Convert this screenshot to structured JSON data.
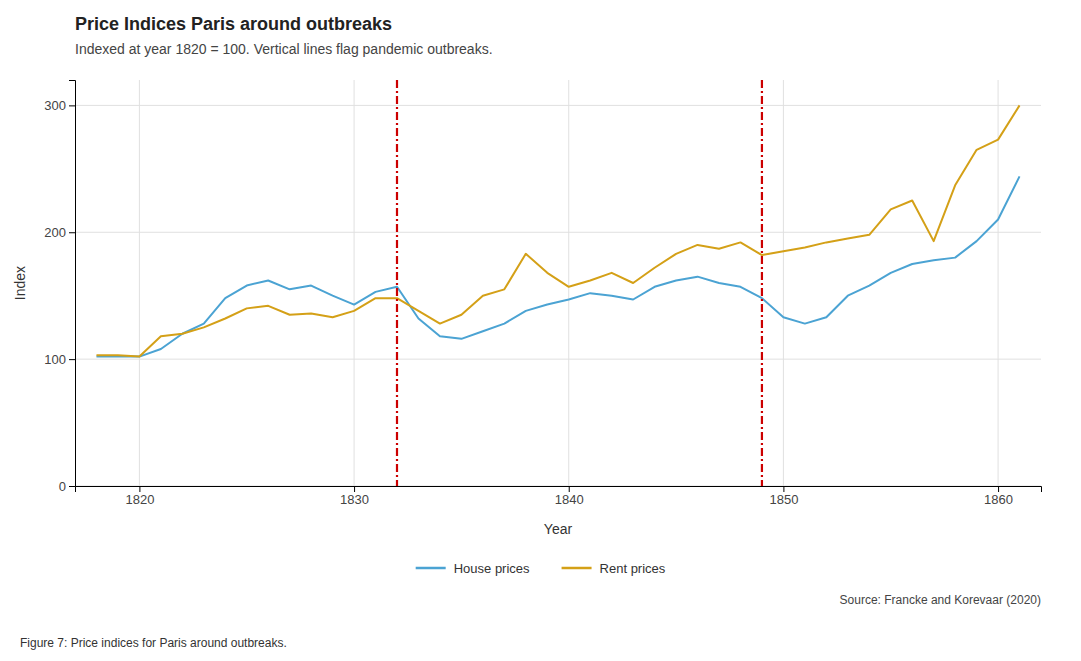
{
  "chart_data": {
    "type": "line",
    "title": "Price Indices Paris around outbreaks",
    "subtitle": "Indexed at year 1820 = 100. Vertical lines flag pandemic outbreaks.",
    "xlabel": "Year",
    "ylabel": "Index",
    "source": "Source: Francke and Korevaar (2020)",
    "caption": "Figure 7: Price indices for Paris around outbreaks.",
    "x": [
      1818,
      1819,
      1820,
      1821,
      1822,
      1823,
      1824,
      1825,
      1826,
      1827,
      1828,
      1829,
      1830,
      1831,
      1832,
      1833,
      1834,
      1835,
      1836,
      1837,
      1838,
      1839,
      1840,
      1841,
      1842,
      1843,
      1844,
      1845,
      1846,
      1847,
      1848,
      1849,
      1850,
      1851,
      1852,
      1853,
      1854,
      1855,
      1856,
      1857,
      1858,
      1859,
      1860,
      1861
    ],
    "series": [
      {
        "name": "House prices",
        "color": "#4ba3d3",
        "values": [
          102,
          102,
          102,
          108,
          120,
          128,
          148,
          158,
          162,
          155,
          158,
          150,
          143,
          153,
          157,
          132,
          118,
          116,
          122,
          128,
          138,
          143,
          147,
          152,
          150,
          147,
          157,
          162,
          165,
          160,
          157,
          148,
          133,
          128,
          133,
          150,
          158,
          168,
          175,
          178,
          180,
          193,
          210,
          244
        ]
      },
      {
        "name": "Rent prices",
        "color": "#d4a017",
        "values": [
          103,
          103,
          102,
          118,
          120,
          125,
          132,
          140,
          142,
          135,
          136,
          133,
          138,
          148,
          148,
          138,
          128,
          135,
          150,
          155,
          183,
          168,
          157,
          162,
          168,
          160,
          172,
          183,
          190,
          187,
          192,
          182,
          185,
          188,
          192,
          195,
          198,
          218,
          225,
          193,
          237,
          265,
          273,
          300
        ]
      }
    ],
    "reference_lines": {
      "x": [
        1832,
        1849
      ],
      "color": "#cc0000",
      "line_style": "dashdot"
    },
    "xlim": [
      1817,
      1862
    ],
    "ylim": [
      0,
      320
    ],
    "xticks": [
      1820,
      1830,
      1840,
      1850,
      1860
    ],
    "yticks": [
      0,
      100,
      200,
      300
    ],
    "grid": true,
    "legend": "bottom"
  }
}
